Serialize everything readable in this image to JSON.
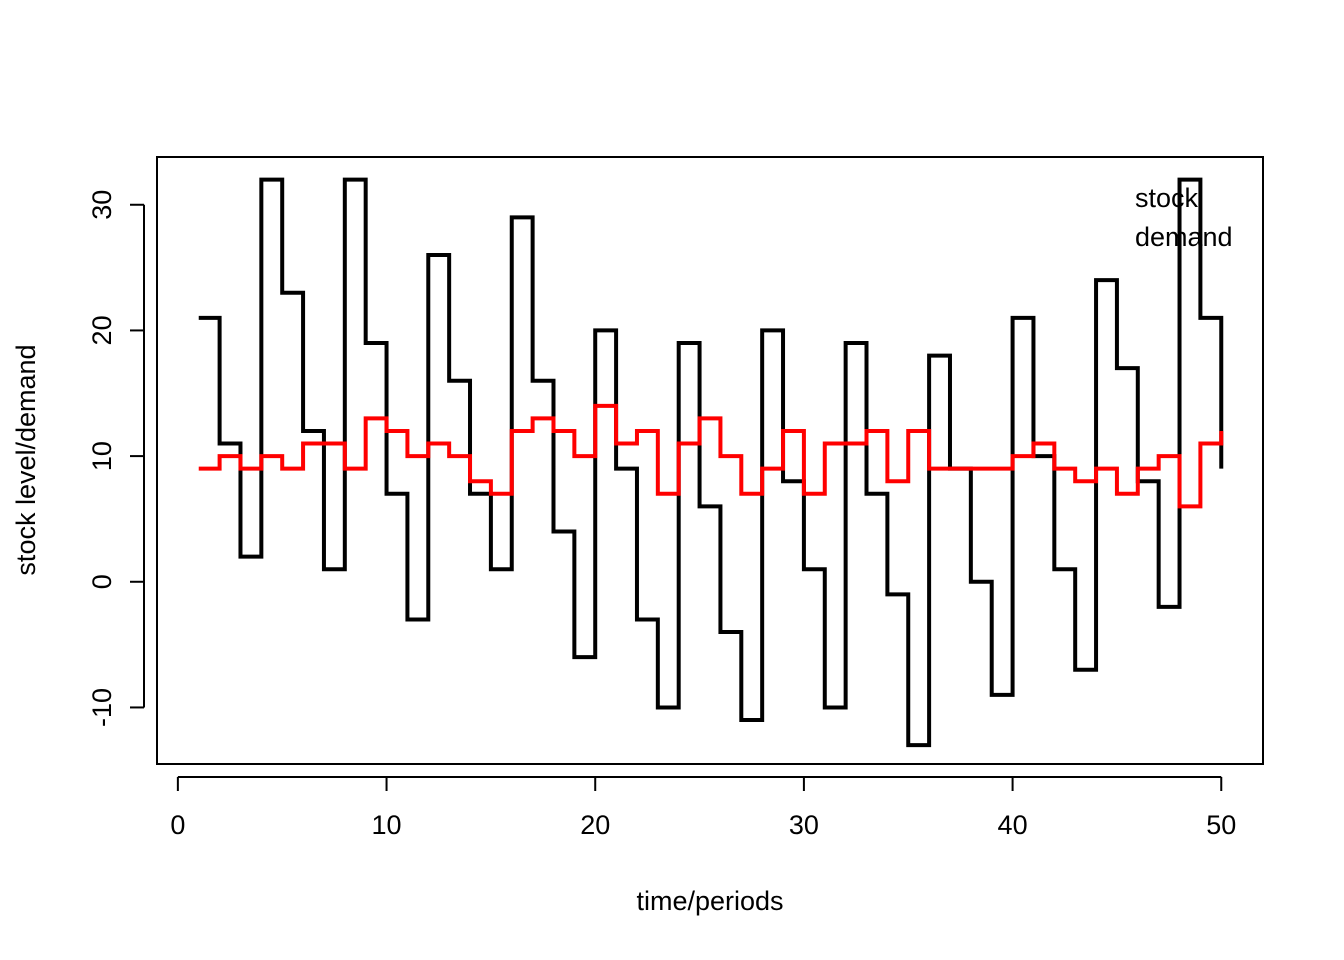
{
  "chart_data": {
    "type": "line",
    "step": true,
    "title": "",
    "xlabel": "time/periods",
    "ylabel": "stock level/demand",
    "xlim": [
      -1,
      52
    ],
    "ylim": [
      -14.5,
      33.8
    ],
    "x_ticks": [
      0,
      10,
      20,
      30,
      40,
      50
    ],
    "y_ticks": [
      -10,
      0,
      10,
      20,
      30
    ],
    "legend": {
      "position": "top-right",
      "labels": [
        "stock",
        "demand"
      ]
    },
    "series": [
      {
        "name": "stock",
        "color": "#000000",
        "x": [
          1,
          2,
          3,
          4,
          5,
          6,
          7,
          8,
          9,
          10,
          11,
          12,
          13,
          14,
          15,
          16,
          17,
          18,
          19,
          20,
          21,
          22,
          23,
          24,
          25,
          26,
          27,
          28,
          29,
          30,
          31,
          32,
          33,
          34,
          35,
          36,
          37,
          38,
          39,
          40,
          41,
          42,
          43,
          44,
          45,
          46,
          47,
          48,
          49,
          50
        ],
        "values": [
          21,
          11,
          2,
          32,
          23,
          12,
          1,
          32,
          19,
          7,
          -3,
          26,
          16,
          7,
          1,
          29,
          16,
          4,
          -6,
          20,
          9,
          -3,
          -10,
          19,
          6,
          -4,
          -11,
          20,
          8,
          1,
          -10,
          19,
          7,
          -1,
          -13,
          18,
          9,
          0,
          -9,
          21,
          10,
          1,
          -7,
          24,
          17,
          8,
          -2,
          32,
          21,
          9
        ]
      },
      {
        "name": "demand",
        "color": "#ff0000",
        "x": [
          1,
          2,
          3,
          4,
          5,
          6,
          7,
          8,
          9,
          10,
          11,
          12,
          13,
          14,
          15,
          16,
          17,
          18,
          19,
          20,
          21,
          22,
          23,
          24,
          25,
          26,
          27,
          28,
          29,
          30,
          31,
          32,
          33,
          34,
          35,
          36,
          37,
          38,
          39,
          40,
          41,
          42,
          43,
          44,
          45,
          46,
          47,
          48,
          49,
          50
        ],
        "values": [
          9,
          10,
          9,
          10,
          9,
          11,
          11,
          9,
          13,
          12,
          10,
          11,
          10,
          8,
          7,
          12,
          13,
          12,
          10,
          14,
          11,
          12,
          7,
          11,
          13,
          10,
          7,
          9,
          12,
          7,
          11,
          11,
          12,
          8,
          12,
          9,
          9,
          9,
          9,
          10,
          11,
          9,
          8,
          9,
          7,
          9,
          10,
          6,
          11,
          12
        ]
      }
    ]
  }
}
